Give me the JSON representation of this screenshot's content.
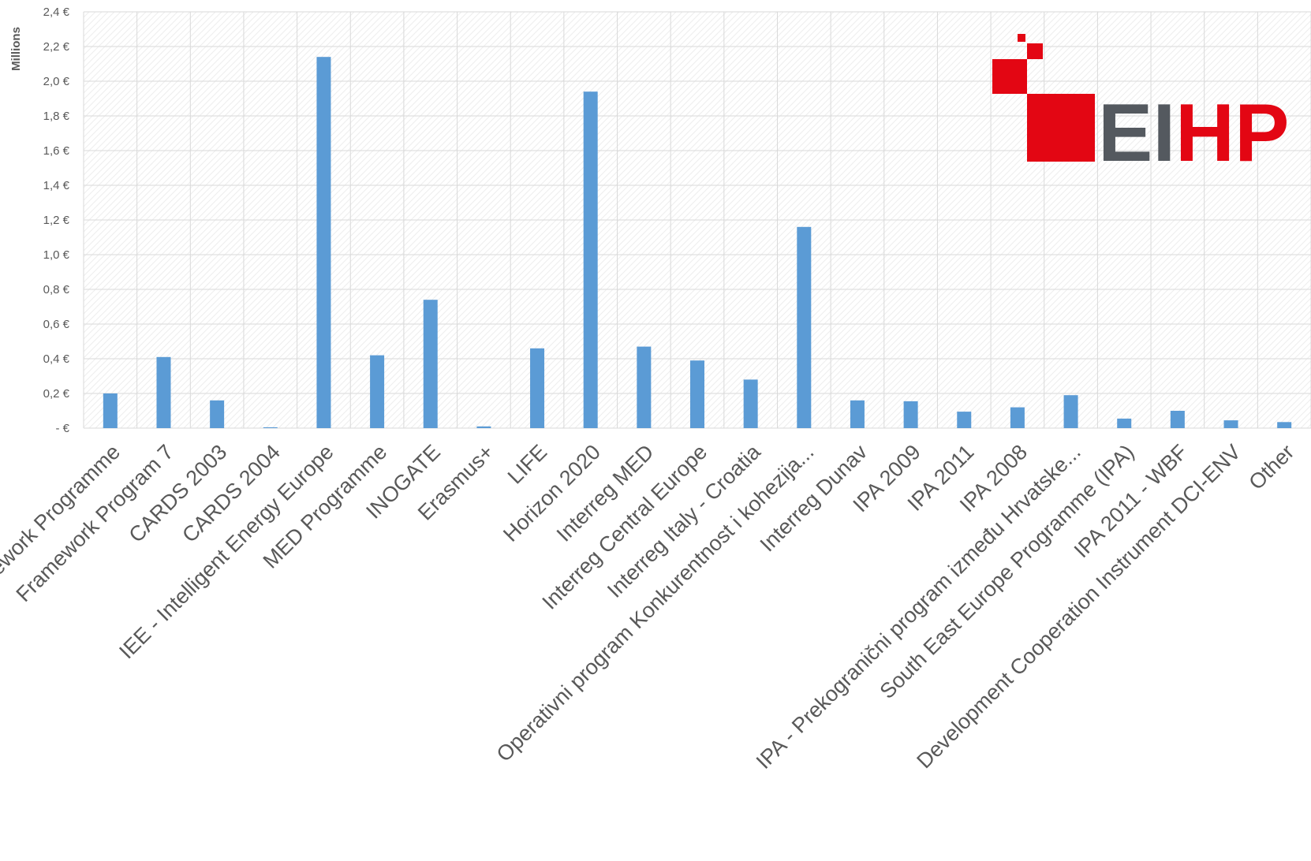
{
  "chart_data": {
    "type": "bar",
    "title": "",
    "ylabel": "",
    "y_unit_label": "Millions",
    "ylim": [
      0,
      2.4
    ],
    "y_ticks": [
      {
        "value": 0,
        "label": "- €"
      },
      {
        "value": 0.2,
        "label": "0,2 €"
      },
      {
        "value": 0.4,
        "label": "0,4 €"
      },
      {
        "value": 0.6,
        "label": "0,6 €"
      },
      {
        "value": 0.8,
        "label": "0,8 €"
      },
      {
        "value": 1.0,
        "label": "1,0 €"
      },
      {
        "value": 1.2,
        "label": "1,2 €"
      },
      {
        "value": 1.4,
        "label": "1,4 €"
      },
      {
        "value": 1.6,
        "label": "1,6 €"
      },
      {
        "value": 1.8,
        "label": "1,8 €"
      },
      {
        "value": 2.0,
        "label": "2,0 €"
      },
      {
        "value": 2.2,
        "label": "2,2 €"
      },
      {
        "value": 2.4,
        "label": "2,4 €"
      }
    ],
    "categories": [
      "Framework Programme",
      "Framework Program 7",
      "CARDS 2003",
      "CARDS 2004",
      "IEE - Intelligent Energy Europe",
      "MED Programme",
      "INOGATE",
      "Erasmus+",
      "LIFE",
      "Horizon 2020",
      "Interreg MED",
      "Interreg Central Europe",
      "Interreg Italy - Croatia",
      "Operativni program Konkurentnost i kohezija...",
      "Interreg Dunav",
      "IPA 2009",
      "IPA 2011",
      "IPA 2008",
      "IPA - Prekogranični program između Hrvatske...",
      "South East Europe Programme (IPA)",
      "IPA 2011 - WBF",
      "Development Cooperation Instrument DCI-ENV",
      "Other"
    ],
    "values": [
      0.2,
      0.41,
      0.16,
      0.005,
      2.14,
      0.42,
      0.74,
      0.01,
      0.46,
      1.94,
      0.47,
      0.39,
      0.28,
      1.16,
      0.16,
      0.155,
      0.095,
      0.12,
      0.19,
      0.055,
      0.1,
      0.045,
      0.035
    ],
    "bar_color": "#5B9BD5",
    "grid_color": "#D9D9D9",
    "grid": true
  },
  "logo": {
    "text_left": "EI",
    "text_right": "HP",
    "color_red": "#E30613",
    "color_gray": "#54595F"
  }
}
